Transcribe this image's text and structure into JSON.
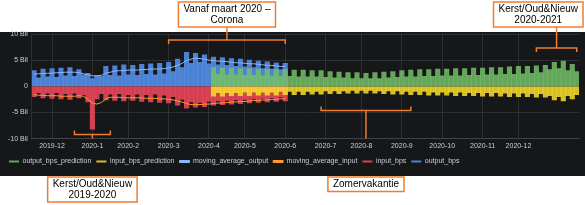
{
  "chart_data": {
    "type": "bar",
    "legend": "bottom-left",
    "grid": true,
    "ylim": [
      -10,
      10
    ],
    "yticks": [
      {
        "value": 10,
        "label": "10 Bil"
      },
      {
        "value": 5,
        "label": "5 Bil"
      },
      0,
      {
        "value": -5,
        "label": "-5 Bil"
      },
      {
        "value": -10,
        "label": "-10 Bil"
      }
    ],
    "categories": [
      null,
      null,
      null,
      null,
      "2019-12",
      null,
      null,
      null,
      null,
      null,
      null,
      null,
      null,
      "2020-1",
      null,
      null,
      null,
      null,
      null,
      null,
      null,
      "2020-2",
      null,
      null,
      null,
      null,
      null,
      null,
      null,
      null,
      "2020-3",
      null,
      null,
      null,
      null,
      null,
      null,
      null,
      null,
      "2020-4",
      null,
      null,
      null,
      null,
      null,
      null,
      null,
      "2020-5",
      null,
      null,
      null,
      null,
      null,
      null,
      null,
      null,
      "2020-6",
      null,
      null,
      null,
      null,
      null,
      null,
      null,
      null,
      "2020-7",
      null,
      null,
      null,
      null,
      null,
      null,
      null,
      "2020-8",
      null,
      null,
      null,
      null,
      null,
      null,
      null,
      null,
      "2020-9",
      null,
      null,
      null,
      null,
      null,
      null,
      null,
      null,
      "2020-10",
      null,
      null,
      null,
      null,
      null,
      null,
      null,
      null,
      "2020-11",
      null,
      null,
      null,
      null,
      null,
      null,
      null,
      "2020-12",
      null,
      null,
      null,
      null,
      null,
      null,
      null,
      null,
      null,
      null,
      null,
      null,
      null
    ],
    "series": [
      {
        "name": "output_bps_prediction",
        "color": "#73bf69",
        "type": "bar",
        "values": [
          null,
          null,
          null,
          null,
          null,
          null,
          null,
          null,
          null,
          null,
          null,
          null,
          null,
          null,
          null,
          null,
          null,
          null,
          null,
          null,
          null,
          null,
          null,
          null,
          null,
          null,
          null,
          null,
          null,
          null,
          null,
          null,
          null,
          null,
          null,
          null,
          null,
          null,
          null,
          null,
          3.6,
          2.3,
          3.5,
          2.2,
          3.5,
          2.2,
          3.4,
          2.1,
          3.4,
          2.1,
          3.3,
          2.0,
          3.3,
          2.0,
          3.2,
          1.9,
          3.2,
          1.9,
          3.1,
          1.8,
          3.1,
          1.8,
          3.0,
          1.8,
          3.0,
          1.7,
          2.8,
          1.6,
          2.7,
          1.6,
          2.6,
          1.5,
          2.6,
          1.5,
          2.5,
          1.5,
          2.6,
          1.5,
          2.7,
          1.6,
          2.8,
          1.7,
          3.0,
          1.8,
          3.1,
          1.8,
          3.2,
          1.9,
          3.2,
          1.9,
          3.3,
          2.0,
          3.3,
          2.0,
          3.4,
          2.0,
          3.4,
          2.1,
          3.5,
          2.1,
          3.5,
          2.2,
          3.6,
          2.2,
          3.6,
          2.3,
          3.7,
          2.3,
          3.8,
          2.4,
          3.8,
          2.5,
          3.9,
          2.6,
          4.0,
          3.2,
          4.6,
          3.4,
          4.8,
          3.0,
          4.2,
          2.8
        ]
      },
      {
        "name": "input_bps_prediction",
        "color": "#fade2a",
        "type": "bar",
        "values": [
          null,
          null,
          null,
          null,
          null,
          null,
          null,
          null,
          null,
          null,
          null,
          null,
          null,
          null,
          null,
          null,
          null,
          null,
          null,
          null,
          null,
          null,
          null,
          null,
          null,
          null,
          null,
          null,
          null,
          null,
          null,
          null,
          null,
          null,
          null,
          null,
          null,
          null,
          null,
          null,
          -1.9,
          -1.2,
          -1.9,
          -1.2,
          -1.8,
          -1.2,
          -1.8,
          -1.1,
          -1.8,
          -1.1,
          -1.7,
          -1.1,
          -1.7,
          -1.1,
          -1.7,
          -1.0,
          -1.6,
          -1.0,
          -1.6,
          -1.0,
          -1.6,
          -1.0,
          -1.5,
          -1.0,
          -1.5,
          -0.9,
          -1.4,
          -0.9,
          -1.4,
          -0.9,
          -1.3,
          -0.8,
          -1.3,
          -0.8,
          -1.3,
          -0.8,
          -1.3,
          -0.9,
          -1.4,
          -0.9,
          -1.5,
          -0.9,
          -1.5,
          -1.0,
          -1.6,
          -1.0,
          -1.6,
          -1.0,
          -1.7,
          -1.1,
          -1.7,
          -1.1,
          -1.7,
          -1.1,
          -1.8,
          -1.1,
          -1.8,
          -1.2,
          -1.8,
          -1.2,
          -1.9,
          -1.2,
          -1.9,
          -1.2,
          -1.9,
          -1.3,
          -2.0,
          -1.3,
          -2.0,
          -1.3,
          -2.0,
          -1.4,
          -2.1,
          -1.4,
          -2.1,
          -1.8,
          -2.6,
          -2.0,
          -2.8,
          -1.8,
          -2.4,
          -1.6
        ]
      },
      {
        "name": "moving_average_output",
        "color": "#8ab8ff",
        "type": "line",
        "values": [
          2.3,
          2.4,
          2.4,
          2.5,
          2.5,
          2.6,
          2.6,
          2.7,
          2.7,
          2.7,
          2.6,
          2.4,
          2.2,
          2.0,
          2.0,
          2.1,
          2.5,
          2.7,
          2.9,
          3.0,
          3.0,
          3.1,
          3.1,
          3.1,
          3.2,
          3.2,
          3.3,
          3.3,
          3.3,
          3.4,
          3.5,
          3.7,
          4.0,
          4.4,
          4.9,
          5.2,
          5.4,
          5.3,
          5.2,
          5.0,
          4.9,
          4.8,
          4.8,
          4.7,
          4.6,
          4.5,
          4.5,
          4.4,
          4.3,
          4.3,
          4.2,
          4.1,
          4.0,
          4.0,
          3.9,
          3.8,
          3.8,
          null,
          null,
          null,
          null,
          null,
          null,
          null,
          null,
          null,
          null,
          null,
          null,
          null,
          null,
          null,
          null,
          null,
          null,
          null,
          null,
          null,
          null,
          null,
          null,
          null,
          null,
          null,
          null,
          null,
          null,
          null,
          null,
          null,
          null,
          null,
          null,
          null,
          null,
          null,
          null,
          null,
          null,
          null,
          null,
          null,
          null,
          null,
          null,
          null,
          null,
          null,
          null,
          null,
          null,
          null,
          null,
          null,
          null,
          null,
          null,
          null,
          null,
          null,
          null,
          null
        ]
      },
      {
        "name": "moving_average_input",
        "color": "#ff9830",
        "type": "line",
        "values": [
          -1.6,
          -1.7,
          -1.7,
          -1.8,
          -1.8,
          -1.8,
          -1.9,
          -1.9,
          -1.9,
          -1.9,
          -1.8,
          -1.9,
          -2.5,
          -3.2,
          -3.4,
          -3.1,
          -2.4,
          -2.1,
          -2.1,
          -2.1,
          -2.2,
          -2.2,
          -2.2,
          -2.2,
          -2.2,
          -2.3,
          -2.3,
          -2.3,
          -2.4,
          -2.4,
          -2.5,
          -2.6,
          -2.8,
          -3.0,
          -3.3,
          -3.5,
          -3.5,
          -3.5,
          -3.4,
          -3.4,
          -3.3,
          -3.2,
          -3.2,
          -3.1,
          -3.0,
          -3.0,
          -2.9,
          -2.9,
          -2.8,
          -2.7,
          -2.7,
          -2.6,
          -2.6,
          -2.5,
          -2.5,
          -2.4,
          -2.4,
          null,
          null,
          null,
          null,
          null,
          null,
          null,
          null,
          null,
          null,
          null,
          null,
          null,
          null,
          null,
          null,
          null,
          null,
          null,
          null,
          null,
          null,
          null,
          null,
          null,
          null,
          null,
          null,
          null,
          null,
          null,
          null,
          null,
          null,
          null,
          null,
          null,
          null,
          null,
          null,
          null,
          null,
          null,
          null,
          null,
          null,
          null,
          null,
          null,
          null,
          null,
          null,
          null,
          null,
          null,
          null,
          null,
          null,
          null,
          null,
          null,
          null,
          null,
          null,
          null
        ]
      },
      {
        "name": "input_bps",
        "color": "#f2495c",
        "type": "bar",
        "values": [
          -2.0,
          -1.2,
          -2.2,
          -1.3,
          -2.3,
          -1.2,
          -2.4,
          -1.4,
          -2.5,
          -1.3,
          -2.2,
          -1.6,
          -3.0,
          -8.2,
          -2.4,
          -1.4,
          -2.6,
          -1.5,
          -2.7,
          -1.4,
          -2.8,
          -1.6,
          -2.7,
          -1.5,
          -2.9,
          -1.6,
          -3.0,
          -1.5,
          -3.1,
          -1.7,
          -3.2,
          -2.0,
          -3.6,
          -2.5,
          -4.2,
          -3.0,
          -4.0,
          -3.1,
          -3.9,
          -2.9,
          -3.6,
          -2.8,
          -3.5,
          -2.7,
          -3.4,
          -2.6,
          -3.3,
          -2.5,
          -3.2,
          -2.4,
          -3.1,
          -2.3,
          -3.0,
          -2.2,
          -2.9,
          -2.1,
          -2.8,
          null,
          null,
          null,
          null,
          null,
          null,
          null,
          null,
          null,
          null,
          null,
          null,
          null,
          null,
          null,
          null,
          null,
          null,
          null,
          null,
          null,
          null,
          null,
          null,
          null,
          null,
          null,
          null,
          null,
          null,
          null,
          null,
          null,
          null,
          null,
          null,
          null,
          null,
          null,
          null,
          null,
          null,
          null,
          null,
          null,
          null,
          null,
          null,
          null,
          null,
          null,
          null,
          null,
          null,
          null,
          null,
          null,
          null,
          null,
          null,
          null,
          null,
          null,
          null,
          null
        ]
      },
      {
        "name": "output_bps",
        "color": "#5794f2",
        "type": "bar",
        "values": [
          3.0,
          1.6,
          3.3,
          1.8,
          3.4,
          1.7,
          3.5,
          2.0,
          3.6,
          1.9,
          3.2,
          2.2,
          2.5,
          1.5,
          2.0,
          1.9,
          3.8,
          2.1,
          3.9,
          2.0,
          4.1,
          2.2,
          4.0,
          2.1,
          4.2,
          2.3,
          4.3,
          2.2,
          4.4,
          2.4,
          4.6,
          2.8,
          5.2,
          3.6,
          6.5,
          4.4,
          6.3,
          4.6,
          6.0,
          4.3,
          5.6,
          4.1,
          5.5,
          4.0,
          5.3,
          3.8,
          5.2,
          3.7,
          5.0,
          3.6,
          4.8,
          3.4,
          4.7,
          3.3,
          4.5,
          3.2,
          4.4,
          null,
          null,
          null,
          null,
          null,
          null,
          null,
          null,
          null,
          null,
          null,
          null,
          null,
          null,
          null,
          null,
          null,
          null,
          null,
          null,
          null,
          null,
          null,
          null,
          null,
          null,
          null,
          null,
          null,
          null,
          null,
          null,
          null,
          null,
          null,
          null,
          null,
          null,
          null,
          null,
          null,
          null,
          null,
          null,
          null,
          null,
          null,
          null,
          null,
          null,
          null,
          null,
          null,
          null,
          null,
          null,
          null,
          null,
          null,
          null,
          null,
          null,
          null,
          null,
          null
        ]
      }
    ],
    "annotations": [
      {
        "text": [
          "Vanaf maart 2020 –",
          "Corona"
        ]
      },
      {
        "text": [
          "Kerst/Oud&Nieuw",
          "2020-2021"
        ]
      },
      {
        "text": [
          "Kerst/Oud&Nieuw",
          "2019-2020"
        ]
      },
      {
        "text": [
          "Zomervakantie"
        ]
      }
    ]
  }
}
